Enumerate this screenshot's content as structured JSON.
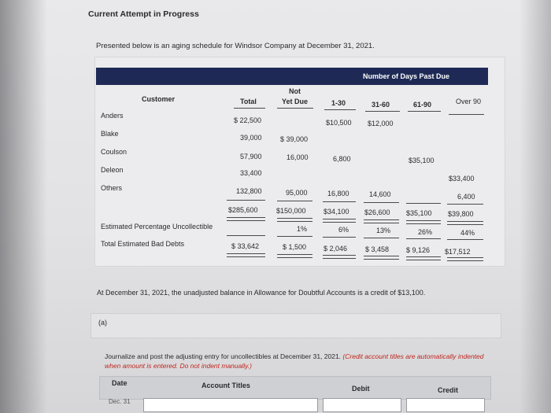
{
  "page": {
    "heading": "Current Attempt in Progress",
    "intro": "Presented below is an aging schedule for Windsor Company at December 31, 2021."
  },
  "table": {
    "band_label": "Number of Days Past Due",
    "headers": {
      "customer": "Customer",
      "total": "Total",
      "not_yet_due_1": "Not",
      "not_yet_due_2": "Yet Due",
      "d1_30": "1-30",
      "d31_60": "31-60",
      "d61_90": "61-90",
      "over90": "Over 90"
    },
    "rows": [
      {
        "name": "Anders",
        "total": "$ 22,500",
        "not_yet_due": "",
        "d1_30": "$10,500",
        "d31_60": "$12,000",
        "d61_90": "",
        "over90": ""
      },
      {
        "name": "Blake",
        "total": "39,000",
        "not_yet_due": "$ 39,000",
        "d1_30": "",
        "d31_60": "",
        "d61_90": "",
        "over90": ""
      },
      {
        "name": "Coulson",
        "total": "57,900",
        "not_yet_due": "16,000",
        "d1_30": "6,800",
        "d31_60": "",
        "d61_90": "$35,100",
        "over90": ""
      },
      {
        "name": "Deleon",
        "total": "33,400",
        "not_yet_due": "",
        "d1_30": "",
        "d31_60": "",
        "d61_90": "",
        "over90": "$33,400"
      },
      {
        "name": "Others",
        "total": "132,800",
        "not_yet_due": "95,000",
        "d1_30": "16,800",
        "d31_60": "14,600",
        "d61_90": "",
        "over90": "6,400"
      }
    ],
    "totals": {
      "total": "$285,600",
      "not_yet_due": "$150,000",
      "d1_30": "$34,100",
      "d31_60": "$26,600",
      "d61_90": "$35,100",
      "over90": "$39,800"
    },
    "pct": {
      "label": "Estimated Percentage Uncollectible",
      "not_yet_due": "1%",
      "d1_30": "6%",
      "d31_60": "13%",
      "d61_90": "26%",
      "over90": "44%"
    },
    "bad": {
      "label": "Total Estimated Bad Debts",
      "total": "$ 33,642",
      "not_yet_due": "$ 1,500",
      "d1_30": "$ 2,046",
      "d31_60": "$ 3,458",
      "d61_90": "$ 9,126",
      "over90": "$17,512"
    }
  },
  "note": "At December 31, 2021, the unadjusted balance in Allowance for Doubtful Accounts is a credit of $13,100.",
  "part": "(a)",
  "instructions": {
    "main": "Journalize and post the adjusting entry for uncollectibles at December 31, 2021.",
    "red": "(Credit account titles are automatically indented when amount is entered. Do not indent manually.)"
  },
  "journal": {
    "date_header": "Date",
    "account_header": "Account Titles",
    "debit_header": "Debit",
    "credit_header": "Credit",
    "date_value": "Dec. 31"
  }
}
